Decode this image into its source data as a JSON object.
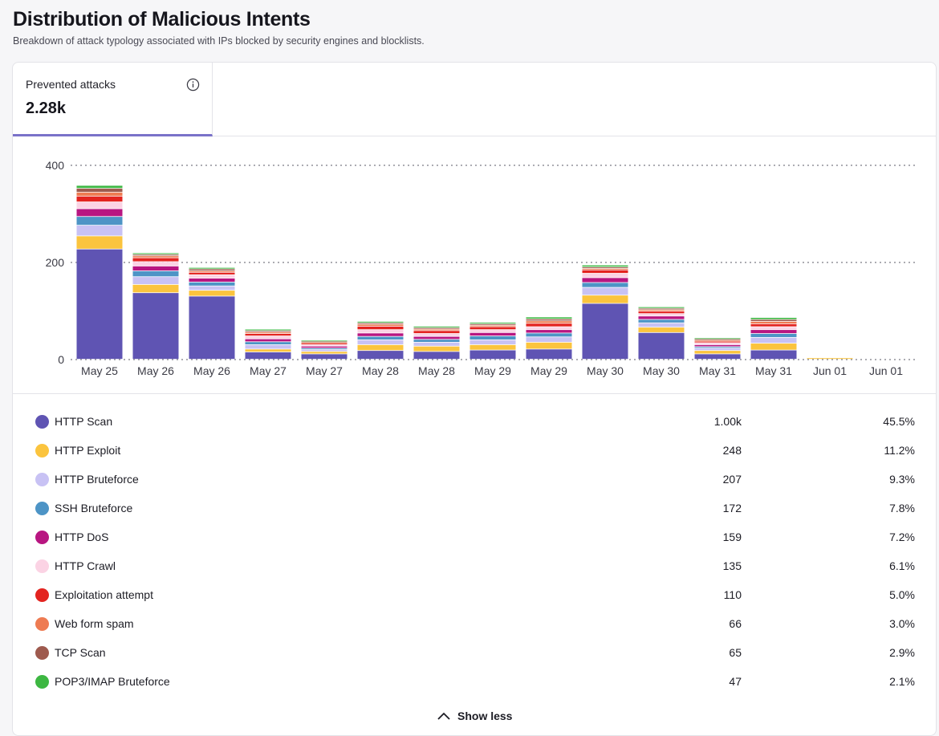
{
  "header": {
    "title": "Distribution of Malicious Intents",
    "subtitle": "Breakdown of attack typology associated with IPs blocked by security engines and blocklists."
  },
  "metric": {
    "label": "Prevented attacks",
    "value": "2.28k",
    "info_icon": "info-circle-icon"
  },
  "legend": {
    "items": [
      {
        "name": "HTTP Scan",
        "count": "1.00k",
        "pct": "45.5%",
        "color": "#5f54b3"
      },
      {
        "name": "HTTP Exploit",
        "count": "248",
        "pct": "11.2%",
        "color": "#fbc43e"
      },
      {
        "name": "HTTP Bruteforce",
        "count": "207",
        "pct": "9.3%",
        "color": "#c8c2f4"
      },
      {
        "name": "SSH Bruteforce",
        "count": "172",
        "pct": "7.8%",
        "color": "#4d94c6"
      },
      {
        "name": "HTTP DoS",
        "count": "159",
        "pct": "7.2%",
        "color": "#b81681"
      },
      {
        "name": "HTTP Crawl",
        "count": "135",
        "pct": "6.1%",
        "color": "#fbd3e4"
      },
      {
        "name": "Exploitation attempt",
        "count": "110",
        "pct": "5.0%",
        "color": "#e32420"
      },
      {
        "name": "Web form spam",
        "count": "66",
        "pct": "3.0%",
        "color": "#ee7b52"
      },
      {
        "name": "TCP Scan",
        "count": "65",
        "pct": "2.9%",
        "color": "#9e5a4e"
      },
      {
        "name": "POP3/IMAP Bruteforce",
        "count": "47",
        "pct": "2.1%",
        "color": "#3db742"
      }
    ]
  },
  "show_less": {
    "label": "Show less",
    "icon": "chevron-up-icon"
  },
  "chart_data": {
    "type": "bar",
    "stacked": true,
    "categories": [
      "May 25",
      "May 26",
      "May 26",
      "May 27",
      "May 27",
      "May 28",
      "May 28",
      "May 29",
      "May 29",
      "May 30",
      "May 30",
      "May 31",
      "May 31",
      "Jun 01",
      "Jun 01"
    ],
    "ylim": [
      0,
      400
    ],
    "yticks": [
      0,
      200,
      400
    ],
    "grid": true,
    "series": [
      {
        "name": "HTTP Scan",
        "color": "#5f54b3",
        "values": [
          227,
          137,
          130,
          15,
          11,
          18,
          16,
          19,
          21,
          115,
          55,
          11,
          19,
          0,
          0
        ]
      },
      {
        "name": "HTTP Exploit",
        "color": "#fbc43e",
        "values": [
          27,
          17,
          12,
          6,
          5,
          12,
          11,
          11,
          14,
          17,
          11,
          7,
          14,
          3,
          0
        ]
      },
      {
        "name": "HTTP Bruteforce",
        "color": "#c8c2f4",
        "values": [
          22,
          16,
          9,
          9,
          4,
          10,
          8,
          10,
          11,
          16,
          9,
          5,
          12,
          0,
          0
        ]
      },
      {
        "name": "SSH Bruteforce",
        "color": "#4d94c6",
        "values": [
          18,
          12,
          8,
          6,
          3,
          7,
          6,
          8,
          8,
          10,
          7,
          3,
          8,
          0,
          0
        ]
      },
      {
        "name": "HTTP DoS",
        "color": "#b81681",
        "values": [
          16,
          10,
          8,
          6,
          4,
          7,
          6,
          7,
          7,
          10,
          7,
          4,
          8,
          0,
          0
        ]
      },
      {
        "name": "HTTP Crawl",
        "color": "#fbd3e4",
        "values": [
          14,
          9,
          7,
          6,
          3,
          7,
          6,
          6,
          6,
          9,
          5,
          4,
          6,
          0,
          0
        ]
      },
      {
        "name": "Exploitation attempt",
        "color": "#e32420",
        "values": [
          12,
          8,
          5,
          5,
          3,
          7,
          6,
          6,
          7,
          7,
          5,
          3,
          6,
          0,
          0
        ]
      },
      {
        "name": "Web form spam",
        "color": "#ee7b52",
        "values": [
          8,
          4,
          3,
          3,
          2,
          4,
          3,
          3,
          5,
          3,
          3,
          2,
          5,
          0,
          0
        ]
      },
      {
        "name": "TCP Scan",
        "color": "#9e5a4e",
        "values": [
          8,
          3,
          4,
          3,
          2,
          3,
          3,
          3,
          4,
          3,
          3,
          3,
          4,
          0,
          0
        ]
      },
      {
        "name": "POP3/IMAP Bruteforce",
        "color": "#3db742",
        "values": [
          6,
          3,
          3,
          3,
          2,
          3,
          3,
          3,
          4,
          4,
          3,
          2,
          4,
          0,
          0
        ]
      }
    ]
  }
}
